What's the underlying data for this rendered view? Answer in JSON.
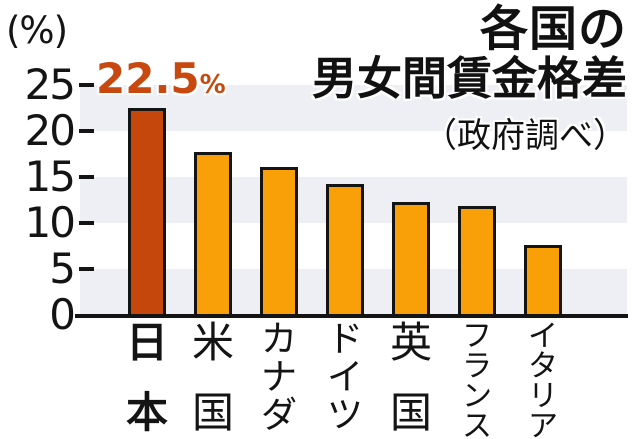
{
  "axis_unit_label": "(%)",
  "annotation": {
    "value": "22.5",
    "unit": "%"
  },
  "title": {
    "line1": "各国の",
    "line2": "男女間賃金格差",
    "subtitle": "（政府調べ）"
  },
  "chart_data": {
    "type": "bar",
    "title": "各国の男女間賃金格差",
    "subtitle": "（政府調べ）",
    "ylabel": "(%)",
    "unit": "%",
    "categories": [
      "日本",
      "米国",
      "カナダ",
      "ドイツ",
      "英国",
      "フランス",
      "イタリア"
    ],
    "values": [
      22.5,
      17.7,
      16.1,
      14.2,
      12.3,
      11.8,
      7.6
    ],
    "highlight_index": 0,
    "annotation": {
      "category": "日本",
      "text": "22.5%"
    },
    "ylim": [
      0,
      25
    ],
    "yticks": [
      25,
      20,
      15,
      10,
      5,
      0
    ],
    "stripe_bands": [
      [
        20,
        25
      ],
      [
        10,
        15
      ],
      [
        0,
        5
      ]
    ],
    "grid": false,
    "legend": false,
    "colors": {
      "bar_default": "#f9a008",
      "bar_highlight": "#c5470b",
      "bar_outline": "#141414",
      "stripe": "#edeff4",
      "annotation_text": "#c8490f"
    }
  }
}
